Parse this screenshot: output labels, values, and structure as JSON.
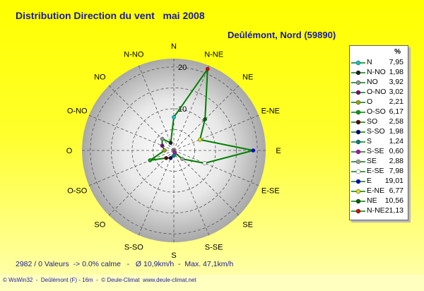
{
  "title": "Distribution Direction du vent   mai 2008",
  "location": "Deûlémont, Nord (59890)",
  "stats": "2982 / 0 Valeurs  -> 0.0% calme   -   Ø 10,9km/h  -  Max. 47,1km/h",
  "footer": "© WsWin32  -  Deûlémont (F) - 16m  -  © Deule-Climat  www.deule-climat.net",
  "legend_header": "%",
  "colors": {
    "line": "#008000",
    "grid": "#555555"
  },
  "chart_data": {
    "type": "radar",
    "rlim": [
      0,
      22
    ],
    "ticks": [
      {
        "value": 10,
        "label": "10"
      },
      {
        "value": 20,
        "label": "20"
      }
    ],
    "directions": [
      "N",
      "N-NE",
      "NE",
      "E-NE",
      "E",
      "E-SE",
      "SE",
      "S-SE",
      "S",
      "S-SO",
      "SO",
      "O-SO",
      "O",
      "O-NO",
      "NO",
      "N-NO"
    ],
    "series": [
      {
        "dir": "N",
        "label": "N",
        "value": "7,95",
        "num": 7.95,
        "color": "#00c8c8"
      },
      {
        "dir": "N-NO",
        "label": "N-NO",
        "value": "1,98",
        "num": 1.98,
        "color": "#202020"
      },
      {
        "dir": "NO",
        "label": "NO",
        "value": "3,92",
        "num": 3.92,
        "color": "#909090"
      },
      {
        "dir": "O-NO",
        "label": "O-NO",
        "value": "3,02",
        "num": 3.02,
        "color": "#800080"
      },
      {
        "dir": "O",
        "label": "O",
        "value": "2,21",
        "num": 2.21,
        "color": "#a0a000"
      },
      {
        "dir": "O-SO",
        "label": "O-SO",
        "value": "6,17",
        "num": 6.17,
        "color": "#00a000"
      },
      {
        "dir": "SO",
        "label": "SO",
        "value": "2,58",
        "num": 2.58,
        "color": "#600000"
      },
      {
        "dir": "S-SO",
        "label": "S-SO",
        "value": "1,98",
        "num": 1.98,
        "color": "#000080"
      },
      {
        "dir": "S",
        "label": "S",
        "value": "1,24",
        "num": 1.24,
        "color": "#008080"
      },
      {
        "dir": "S-SE",
        "label": "S-SE",
        "value": "0,60",
        "num": 0.6,
        "color": "#c000c0"
      },
      {
        "dir": "SE",
        "label": "SE",
        "value": "2,88",
        "num": 2.88,
        "color": "#a0a0a0"
      },
      {
        "dir": "E-SE",
        "label": "E-SE",
        "value": "7,98",
        "num": 7.98,
        "color": "#ffffff"
      },
      {
        "dir": "E",
        "label": "E",
        "value": "19,01",
        "num": 19.01,
        "color": "#0000e0"
      },
      {
        "dir": "E-NE",
        "label": "E-NE",
        "value": "6,77",
        "num": 6.77,
        "color": "#e0e000"
      },
      {
        "dir": "NE",
        "label": "NE",
        "value": "10,56",
        "num": 10.56,
        "color": "#006000"
      },
      {
        "dir": "N-NE",
        "label": "N-NE",
        "value": "21,13",
        "num": 21.13,
        "color": "#e00000"
      }
    ]
  }
}
